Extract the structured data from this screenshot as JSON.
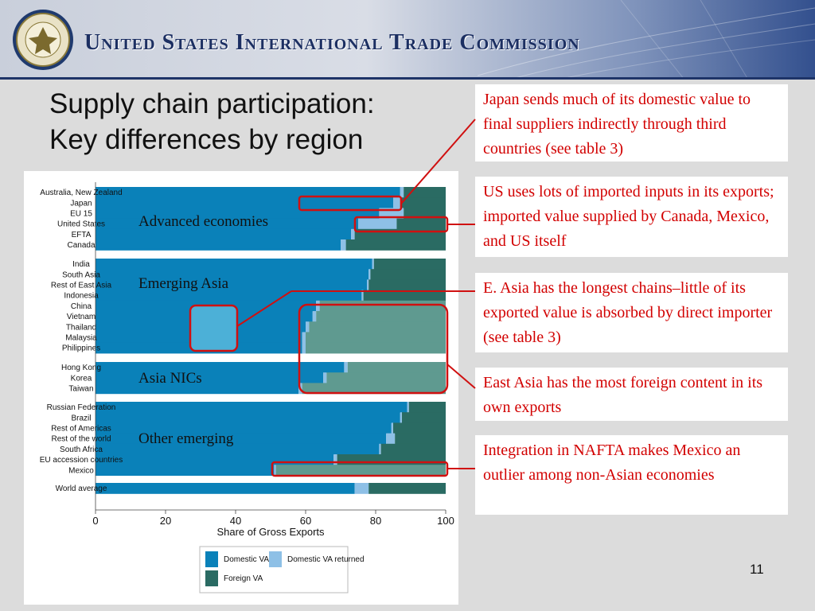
{
  "header": {
    "org_name": "United States International Trade Commission"
  },
  "slide": {
    "title_line1": "Supply chain participation:",
    "title_line2": "Key differences by region",
    "page_number": "11"
  },
  "callouts": {
    "japan": "Japan sends much of its domestic value to final suppliers indirectly through third countries (see table 3)",
    "us": "US uses lots of imported inputs in its exports; imported value supplied by Canada, Mexico, and US itself",
    "east_asia_chains": "E. Asia has the longest chains–little of its exported value is absorbed by direct importer (see table 3)",
    "east_asia_foreign": "East Asia has the most foreign content in its own exports",
    "nafta": "Integration in NAFTA makes Mexico an outlier among non-Asian economies"
  },
  "colors": {
    "domestic_va": "#0a81b9",
    "domestic_va_returned": "#8ec0e6",
    "foreign_va": "#2a6b63",
    "highlight_foreign": "#5f9a90",
    "highlight_domestic": "#4cb0d7",
    "callout_text": "#d20000",
    "marker_red": "#d01010"
  },
  "chart_data": {
    "type": "bar",
    "orientation": "horizontal",
    "stacked": true,
    "xlabel": "Share of Gross Exports",
    "xlim": [
      0,
      100
    ],
    "xticks": [
      0,
      20,
      40,
      60,
      80,
      100
    ],
    "legend_position": "bottom",
    "series": [
      {
        "name": "Domestic VA",
        "color": "#0a81b9"
      },
      {
        "name": "Domestic VA returned",
        "color": "#8ec0e6"
      },
      {
        "name": "Foreign VA",
        "color": "#2a6b63"
      }
    ],
    "groups": [
      {
        "label": "Advanced economies",
        "bars": [
          {
            "category": "Australia, New Zealand",
            "domestic_va": 87,
            "domestic_va_returned": 1,
            "foreign_va": 12
          },
          {
            "category": "Japan",
            "domestic_va": 85,
            "domestic_va_returned": 2,
            "foreign_va": 13
          },
          {
            "category": "EU 15",
            "domestic_va": 81,
            "domestic_va_returned": 7,
            "foreign_va": 12
          },
          {
            "category": "United States",
            "domestic_va": 75,
            "domestic_va_returned": 11,
            "foreign_va": 14
          },
          {
            "category": "EFTA",
            "domestic_va": 73,
            "domestic_va_returned": 1,
            "foreign_va": 26
          },
          {
            "category": "Canada",
            "domestic_va": 70,
            "domestic_va_returned": 1.5,
            "foreign_va": 28.5
          }
        ]
      },
      {
        "label": "Emerging Asia",
        "bars": [
          {
            "category": "India",
            "domestic_va": 79,
            "domestic_va_returned": 0.5,
            "foreign_va": 20.5
          },
          {
            "category": "South Asia",
            "domestic_va": 78,
            "domestic_va_returned": 0.5,
            "foreign_va": 21.5
          },
          {
            "category": "Rest of East Asia",
            "domestic_va": 77.5,
            "domestic_va_returned": 0.5,
            "foreign_va": 22
          },
          {
            "category": "Indonesia",
            "domestic_va": 76,
            "domestic_va_returned": 0.5,
            "foreign_va": 23.5
          },
          {
            "category": "China",
            "domestic_va": 63,
            "domestic_va_returned": 1,
            "foreign_va": 36
          },
          {
            "category": "Vietnam",
            "domestic_va": 62,
            "domestic_va_returned": 1,
            "foreign_va": 37
          },
          {
            "category": "Thailand",
            "domestic_va": 60,
            "domestic_va_returned": 1,
            "foreign_va": 39
          },
          {
            "category": "Malaysia",
            "domestic_va": 59,
            "domestic_va_returned": 1,
            "foreign_va": 40
          },
          {
            "category": "Philippines",
            "domestic_va": 59,
            "domestic_va_returned": 1,
            "foreign_va": 40
          }
        ]
      },
      {
        "label": "Asia NICs",
        "bars": [
          {
            "category": "Hong Kong",
            "domestic_va": 71,
            "domestic_va_returned": 1,
            "foreign_va": 28
          },
          {
            "category": "Korea",
            "domestic_va": 65,
            "domestic_va_returned": 1,
            "foreign_va": 34
          },
          {
            "category": "Taiwan",
            "domestic_va": 58,
            "domestic_va_returned": 1,
            "foreign_va": 41
          }
        ]
      },
      {
        "label": "Other emerging",
        "bars": [
          {
            "category": "Russian Federation",
            "domestic_va": 89,
            "domestic_va_returned": 0.5,
            "foreign_va": 10.5
          },
          {
            "category": "Brazil",
            "domestic_va": 87,
            "domestic_va_returned": 0.5,
            "foreign_va": 12.5
          },
          {
            "category": "Rest of Americas",
            "domestic_va": 84.5,
            "domestic_va_returned": 0.5,
            "foreign_va": 15
          },
          {
            "category": "Rest of the world",
            "domestic_va": 83,
            "domestic_va_returned": 2.5,
            "foreign_va": 14.5
          },
          {
            "category": "South Africa",
            "domestic_va": 81,
            "domestic_va_returned": 0.5,
            "foreign_va": 18.5
          },
          {
            "category": "EU accession countries",
            "domestic_va": 68,
            "domestic_va_returned": 1,
            "foreign_va": 31
          },
          {
            "category": "Mexico",
            "domestic_va": 51,
            "domestic_va_returned": 0.5,
            "foreign_va": 48.5
          }
        ]
      },
      {
        "label": "",
        "bars": [
          {
            "category": "World average",
            "domestic_va": 74,
            "domestic_va_returned": 4,
            "foreign_va": 22
          }
        ]
      }
    ]
  }
}
